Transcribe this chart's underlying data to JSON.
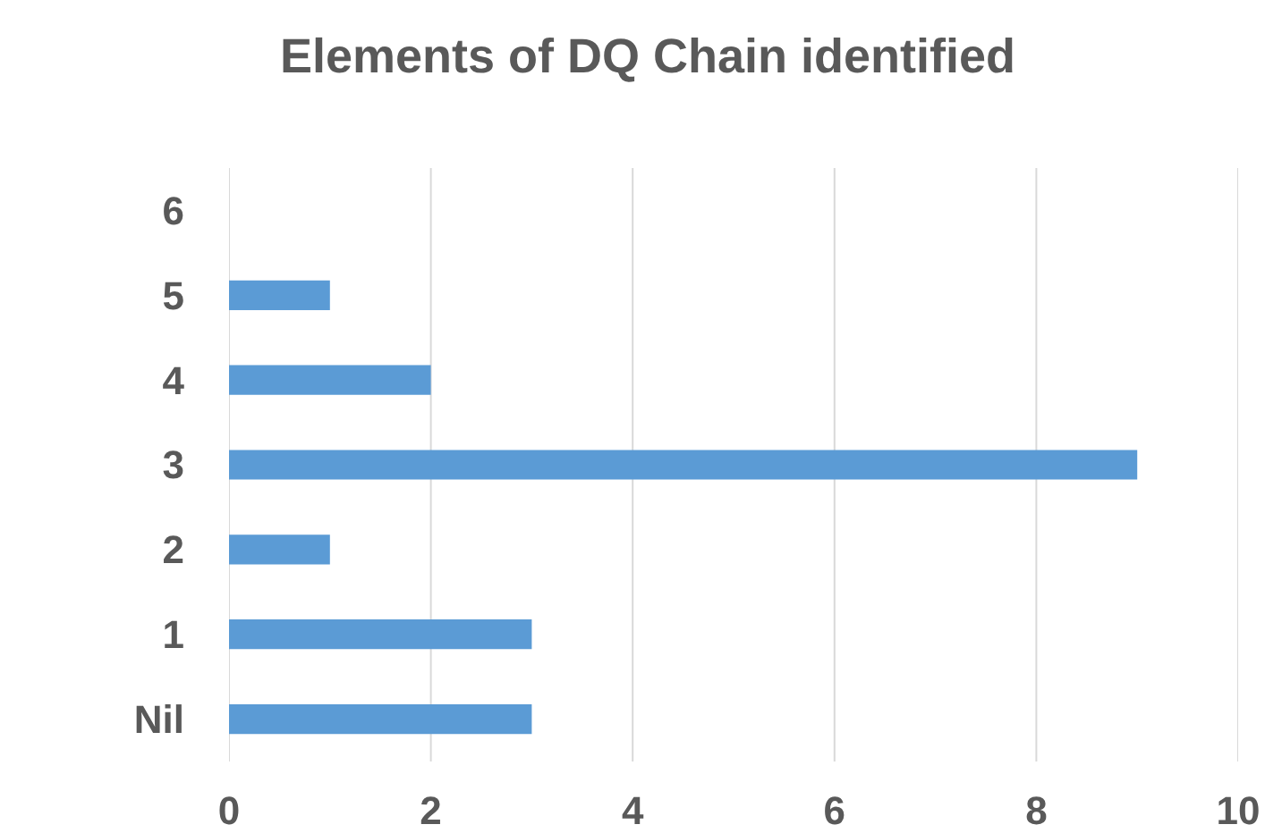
{
  "chart_data": {
    "type": "bar",
    "title": "Elements of DQ Chain identified",
    "orientation": "horizontal",
    "categories": [
      "6",
      "5",
      "4",
      "3",
      "2",
      "1",
      "Nil"
    ],
    "values": [
      0,
      1,
      2,
      9,
      1,
      3,
      3
    ],
    "color": "#5b9bd5",
    "xlim": [
      0,
      10
    ],
    "xticks": [
      0,
      2,
      4,
      6,
      8,
      10
    ],
    "grid": "x"
  }
}
